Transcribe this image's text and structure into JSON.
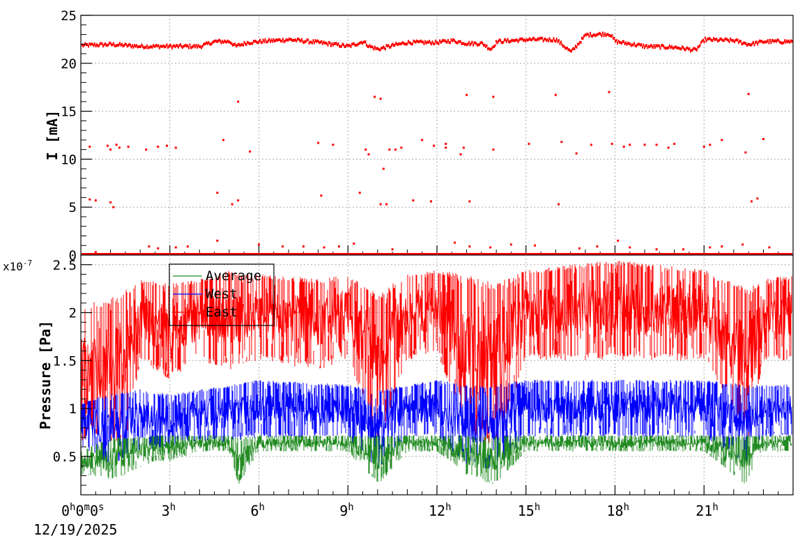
{
  "chart_data": [
    {
      "type": "scatter",
      "ylabel": "I [mA]",
      "ylim": [
        0,
        25
      ],
      "yticks": [
        0,
        5,
        10,
        15,
        20,
        25
      ],
      "grid": true,
      "series": [
        {
          "color": "#ff0000",
          "baseline_x": [
            0,
            1,
            2,
            3,
            4,
            4.5,
            5,
            5.2,
            5.6,
            6,
            7,
            8,
            9,
            9.5,
            9.7,
            10,
            10.5,
            11,
            12,
            12.5,
            13,
            13.5,
            13.8,
            14,
            15,
            16,
            16.5,
            17,
            17.8,
            18,
            19,
            20,
            20.7,
            21,
            22,
            22.5,
            23,
            24
          ],
          "baseline_y": [
            21.9,
            22.0,
            21.8,
            21.8,
            21.8,
            22.3,
            22.3,
            21.8,
            22.2,
            22.3,
            22.5,
            22.2,
            21.8,
            22.3,
            21.8,
            21.5,
            21.9,
            22.2,
            22.2,
            22.4,
            22.1,
            22.1,
            21.5,
            22.3,
            22.5,
            22.5,
            21.2,
            23.0,
            23.1,
            22.3,
            21.8,
            21.7,
            21.4,
            22.5,
            22.4,
            22.0,
            22.3,
            22.3
          ],
          "dropout_points": [
            [
              0.3,
              5.8
            ],
            [
              0.5,
              5.7
            ],
            [
              1.0,
              5.5
            ],
            [
              1.1,
              5.0
            ],
            [
              0.3,
              11.3
            ],
            [
              0.9,
              11.4
            ],
            [
              1.0,
              11.0
            ],
            [
              1.2,
              11.5
            ],
            [
              1.3,
              11.2
            ],
            [
              1.6,
              11.3
            ],
            [
              2.2,
              11.0
            ],
            [
              2.6,
              11.3
            ],
            [
              2.9,
              11.4
            ],
            [
              3.2,
              11.2
            ],
            [
              4.6,
              6.5
            ],
            [
              4.8,
              12.0
            ],
            [
              5.1,
              5.3
            ],
            [
              5.3,
              16.0
            ],
            [
              5.3,
              5.7
            ],
            [
              5.7,
              10.8
            ],
            [
              8.0,
              11.7
            ],
            [
              8.1,
              6.2
            ],
            [
              8.5,
              11.5
            ],
            [
              9.4,
              6.5
            ],
            [
              9.6,
              11.0
            ],
            [
              9.7,
              10.5
            ],
            [
              9.9,
              16.5
            ],
            [
              10.1,
              16.3
            ],
            [
              10.1,
              5.3
            ],
            [
              10.3,
              5.3
            ],
            [
              10.4,
              11.0
            ],
            [
              10.2,
              9.0
            ],
            [
              10.6,
              11.0
            ],
            [
              10.8,
              11.2
            ],
            [
              11.2,
              5.7
            ],
            [
              11.5,
              12.0
            ],
            [
              11.8,
              5.6
            ],
            [
              11.9,
              11.4
            ],
            [
              12.3,
              11.2
            ],
            [
              12.3,
              11.6
            ],
            [
              12.8,
              10.5
            ],
            [
              12.9,
              11.2
            ],
            [
              13.0,
              16.7
            ],
            [
              13.1,
              5.6
            ],
            [
              13.9,
              16.5
            ],
            [
              13.9,
              11.0
            ],
            [
              15.1,
              11.6
            ],
            [
              16.0,
              16.7
            ],
            [
              16.1,
              5.3
            ],
            [
              16.2,
              11.8
            ],
            [
              16.7,
              10.6
            ],
            [
              17.2,
              11.5
            ],
            [
              17.8,
              17.0
            ],
            [
              17.9,
              11.6
            ],
            [
              18.3,
              11.3
            ],
            [
              18.5,
              11.5
            ],
            [
              19.0,
              11.5
            ],
            [
              19.4,
              11.5
            ],
            [
              19.8,
              11.2
            ],
            [
              20.0,
              11.6
            ],
            [
              21.0,
              11.3
            ],
            [
              21.2,
              11.5
            ],
            [
              21.6,
              12.0
            ],
            [
              22.4,
              10.7
            ],
            [
              22.5,
              16.8
            ],
            [
              22.6,
              5.6
            ],
            [
              22.8,
              5.9
            ],
            [
              23.0,
              12.1
            ]
          ],
          "zero_points": [
            [
              0.5,
              0.3
            ],
            [
              2.3,
              0.9
            ],
            [
              2.6,
              0.7
            ],
            [
              3.2,
              0.8
            ],
            [
              3.6,
              0.9
            ],
            [
              4.6,
              1.5
            ],
            [
              6.0,
              1.1
            ],
            [
              6.8,
              0.9
            ],
            [
              7.5,
              0.9
            ],
            [
              8.2,
              0.8
            ],
            [
              8.7,
              0.9
            ],
            [
              9.2,
              1.2
            ],
            [
              10.5,
              0.6
            ],
            [
              12.6,
              1.3
            ],
            [
              13.1,
              0.9
            ],
            [
              13.8,
              0.8
            ],
            [
              14.5,
              1.1
            ],
            [
              15.3,
              1.0
            ],
            [
              16.8,
              0.7
            ],
            [
              17.4,
              0.9
            ],
            [
              18.1,
              1.5
            ],
            [
              18.5,
              0.8
            ],
            [
              19.4,
              0.6
            ],
            [
              20.3,
              0.6
            ],
            [
              21.2,
              0.8
            ],
            [
              21.6,
              0.9
            ],
            [
              22.3,
              1.1
            ],
            [
              23.2,
              0.8
            ]
          ]
        }
      ]
    },
    {
      "type": "line",
      "ylabel": "Pressure [Pa]",
      "scale_label_base": "x10",
      "scale_label_exp": "-7",
      "ylim": [
        0.1,
        2.6
      ],
      "yticks": [
        0.5,
        1.0,
        1.5,
        2.0,
        2.5
      ],
      "grid": true,
      "legend_position": "top-left",
      "series": [
        {
          "name": "Average",
          "color": "#228b22",
          "x": [
            0,
            0.3,
            1.0,
            1.5,
            2.5,
            3.0,
            4.0,
            5.0,
            5.3,
            6.0,
            9.0,
            10.0,
            11.0,
            12.0,
            13.0,
            14.0,
            15.0,
            18.0,
            21.0,
            22.4,
            23.0,
            24.0
          ],
          "low": [
            0.3,
            0.3,
            0.25,
            0.3,
            0.45,
            0.45,
            0.55,
            0.55,
            0.2,
            0.55,
            0.55,
            0.2,
            0.55,
            0.55,
            0.3,
            0.2,
            0.55,
            0.55,
            0.55,
            0.2,
            0.55,
            0.55
          ],
          "high": [
            0.55,
            0.6,
            0.7,
            0.7,
            0.72,
            0.72,
            0.72,
            0.72,
            0.7,
            0.72,
            0.72,
            0.72,
            0.72,
            0.72,
            0.72,
            0.72,
            0.72,
            0.72,
            0.72,
            0.72,
            0.72,
            0.72
          ]
        },
        {
          "name": "West",
          "color": "#0000ff",
          "x": [
            0,
            0.3,
            1.0,
            2.0,
            3.0,
            4.0,
            5.0,
            6.0,
            9.0,
            10.0,
            11.0,
            12.0,
            13.0,
            14.0,
            15.0,
            18.0,
            21.0,
            22.4,
            23.0,
            24.0
          ],
          "low": [
            0.6,
            0.55,
            0.4,
            0.55,
            0.6,
            0.65,
            0.65,
            0.7,
            0.7,
            0.35,
            0.7,
            0.7,
            0.4,
            0.35,
            0.7,
            0.7,
            0.7,
            0.4,
            0.7,
            0.7
          ],
          "high": [
            1.05,
            1.1,
            1.15,
            1.2,
            1.15,
            1.2,
            1.25,
            1.3,
            1.25,
            1.2,
            1.25,
            1.3,
            1.25,
            1.25,
            1.3,
            1.3,
            1.3,
            1.25,
            1.25,
            1.25
          ]
        },
        {
          "name": "East",
          "color": "#ff0000",
          "x": [
            0,
            0.3,
            1.0,
            1.5,
            2.0,
            3.0,
            4.0,
            5.0,
            6.0,
            8.0,
            9.0,
            10.0,
            11.0,
            12.0,
            13.0,
            14.0,
            15.0,
            18.0,
            21.0,
            22.5,
            23.0,
            24.0
          ],
          "low": [
            0.6,
            0.8,
            0.6,
            0.6,
            1.5,
            1.3,
            1.5,
            1.4,
            1.5,
            1.4,
            1.5,
            0.6,
            1.5,
            1.6,
            0.7,
            0.6,
            1.5,
            1.5,
            1.5,
            0.7,
            1.5,
            1.5
          ],
          "high": [
            2.05,
            2.1,
            2.15,
            2.25,
            2.35,
            2.3,
            2.35,
            2.45,
            2.4,
            2.35,
            2.4,
            2.2,
            2.4,
            2.45,
            2.4,
            2.3,
            2.45,
            2.55,
            2.45,
            2.25,
            2.35,
            2.4
          ]
        }
      ]
    }
  ],
  "x_axis": {
    "range_hours": [
      0,
      24
    ],
    "first_tick": {
      "h": "0",
      "h_unit": "h",
      "m": "0",
      "m_unit": "m",
      "s": "0",
      "s_unit": "s"
    },
    "major_ticks": [
      {
        "value": "3",
        "unit": "h"
      },
      {
        "value": "6",
        "unit": "h"
      },
      {
        "value": "9",
        "unit": "h"
      },
      {
        "value": "12",
        "unit": "h"
      },
      {
        "value": "15",
        "unit": "h"
      },
      {
        "value": "18",
        "unit": "h"
      },
      {
        "value": "21",
        "unit": "h"
      }
    ],
    "date_label": "12/19/2025"
  },
  "legend": [
    {
      "label": "Average",
      "color": "#228b22"
    },
    {
      "label": "West",
      "color": "#0000ff"
    },
    {
      "label": "East",
      "color": "#ff0000"
    }
  ]
}
